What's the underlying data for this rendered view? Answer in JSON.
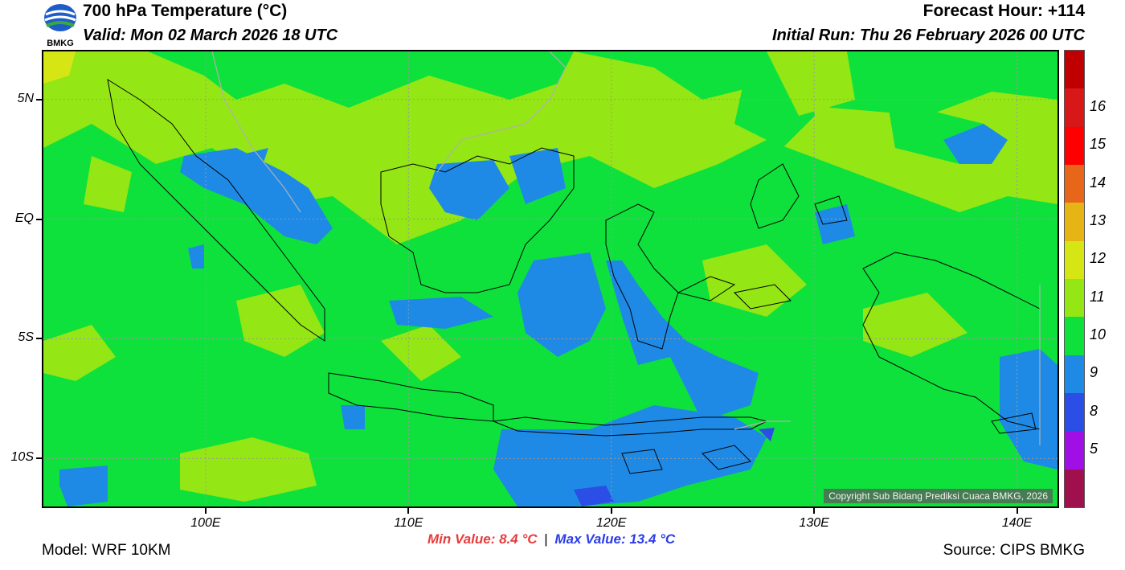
{
  "header": {
    "title": "700 hPa Temperature (°C)",
    "valid": "Valid: Mon 02 March 2026 18 UTC",
    "forecast_hour": "Forecast Hour: +114",
    "initial_run": "Initial Run: Thu 26 February 2026 00 UTC",
    "logo_text": "BMKG"
  },
  "map": {
    "copyright": "Copyright Sub Bidang Prediksi Cuaca BMKG, 2026",
    "lat_labels": [
      {
        "label": "5N",
        "lat": 5
      },
      {
        "label": "EQ",
        "lat": 0
      },
      {
        "label": "5S",
        "lat": -5
      },
      {
        "label": "10S",
        "lat": -10
      }
    ],
    "lon_labels": [
      {
        "label": "100E",
        "lon": 100
      },
      {
        "label": "110E",
        "lon": 110
      },
      {
        "label": "120E",
        "lon": 120
      },
      {
        "label": "130E",
        "lon": 130
      },
      {
        "label": "140E",
        "lon": 140
      }
    ],
    "lon_range": [
      92,
      142
    ],
    "lat_range": [
      -12,
      7
    ]
  },
  "colorbar": {
    "labels": [
      "16",
      "15",
      "14",
      "13",
      "12",
      "11",
      "10",
      "9",
      "8",
      "5"
    ],
    "colors": [
      "#c00000",
      "#d81818",
      "#ff0000",
      "#e8661a",
      "#e6b414",
      "#d6e614",
      "#94e614",
      "#0ee13c",
      "#1e8ae6",
      "#2a4ee6",
      "#a010e6",
      "#a0104c"
    ]
  },
  "stats": {
    "min": "Min Value: 8.4 °C",
    "separator": "|",
    "max": "Max Value: 13.4 °C"
  },
  "footer": {
    "model": "Model: WRF 10KM",
    "source": "Source: CIPS BMKG"
  },
  "palette": {
    "t12": "#d6e614",
    "t11": "#94e614",
    "t10": "#0ee13c",
    "t9": "#1e8ae6",
    "t8": "#2a4ee6"
  }
}
